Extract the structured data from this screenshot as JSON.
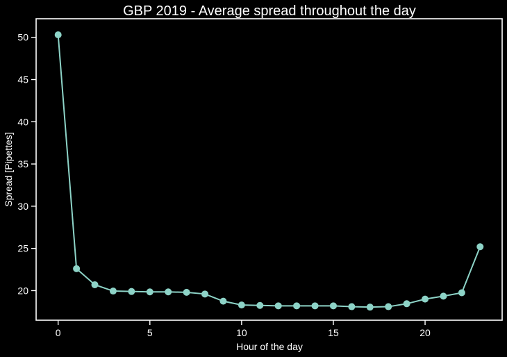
{
  "chart_data": {
    "type": "line",
    "title": "GBP 2019 - Average spread throughout the day",
    "xlabel": "Hour of the day",
    "ylabel": "Spread [Pipettes]",
    "xlim": [
      -1.2,
      24.2
    ],
    "ylim": [
      16.5,
      52.2
    ],
    "xticks": [
      0,
      5,
      10,
      15,
      20
    ],
    "yticks": [
      20,
      25,
      30,
      35,
      40,
      45,
      50
    ],
    "grid": false,
    "line_color": "#8dd3c7",
    "background": "#000000",
    "foreground": "#ffffff",
    "series": [
      {
        "x": [
          0,
          1,
          2,
          3,
          4,
          5,
          6,
          7,
          8,
          9,
          10,
          11,
          12,
          13,
          14,
          15,
          16,
          17,
          18,
          19,
          20,
          21,
          22,
          23
        ],
        "values": [
          50.3,
          22.6,
          20.7,
          19.95,
          19.9,
          19.85,
          19.85,
          19.8,
          19.6,
          18.75,
          18.3,
          18.25,
          18.2,
          18.2,
          18.2,
          18.2,
          18.1,
          18.05,
          18.1,
          18.45,
          19.0,
          19.35,
          19.75,
          25.2
        ]
      }
    ]
  }
}
